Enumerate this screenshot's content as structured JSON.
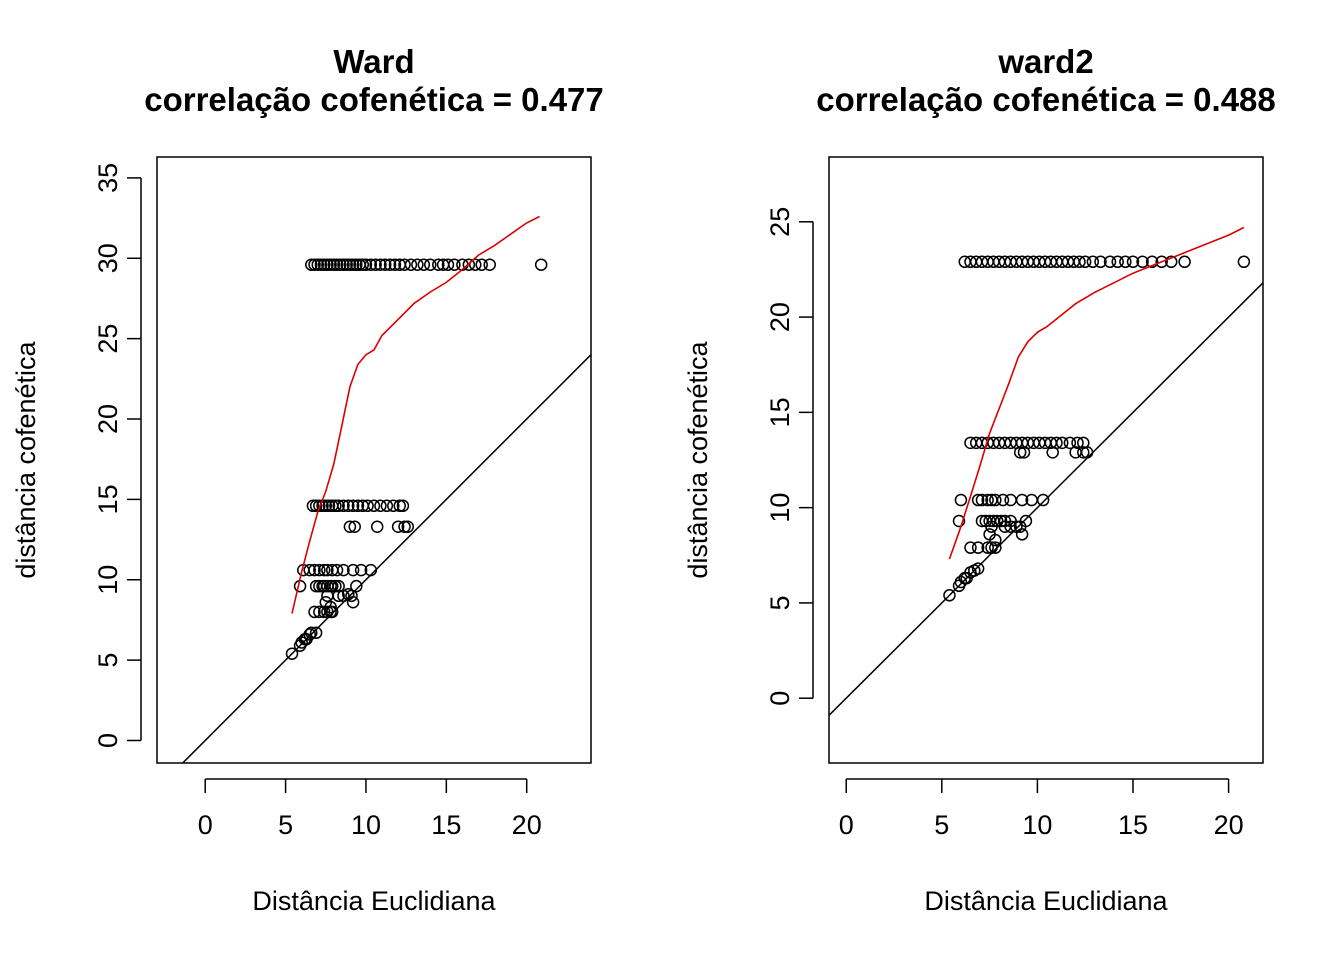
{
  "chart_data": [
    {
      "type": "scatter",
      "title": "Ward",
      "subtitle": "correlação cofenética = 0.477",
      "xlabel": "Distância Euclidiana",
      "ylabel": "distância cofenética",
      "xlim": [
        -3,
        24
      ],
      "ylim": [
        -1.4,
        36.3
      ],
      "xticks": [
        0,
        5,
        10,
        15,
        20
      ],
      "yticks": [
        0,
        5,
        10,
        15,
        20,
        25,
        30,
        35
      ],
      "reference_line": {
        "intercept": 0,
        "slope": 1,
        "color": "#000000"
      },
      "smooth_line": {
        "color": "#dd0000",
        "x": [
          5.4,
          6.0,
          6.5,
          7.0,
          7.5,
          8.0,
          8.5,
          9.0,
          9.5,
          10.0,
          10.5,
          11.0,
          12.0,
          13.0,
          14.0,
          15.0,
          16.0,
          17.0,
          18.0,
          19.0,
          20.0,
          20.8
        ],
        "y": [
          7.9,
          10.5,
          12.4,
          14.2,
          15.5,
          17.2,
          19.6,
          22.0,
          23.4,
          24.0,
          24.3,
          25.2,
          26.2,
          27.2,
          27.9,
          28.5,
          29.3,
          30.2,
          30.8,
          31.5,
          32.2,
          32.6
        ]
      },
      "points": {
        "color": "#000000",
        "x": [
          6.6,
          6.8,
          7.0,
          7.2,
          7.4,
          7.6,
          7.8,
          8.0,
          8.2,
          8.4,
          8.6,
          8.8,
          9.0,
          9.2,
          9.4,
          9.6,
          9.8,
          10.0,
          10.3,
          10.6,
          10.9,
          11.2,
          11.5,
          11.8,
          12.1,
          12.4,
          12.8,
          13.2,
          13.6,
          14.0,
          14.5,
          14.8,
          15.1,
          15.5,
          16.0,
          16.4,
          16.8,
          17.2,
          17.7,
          20.9,
          6.7,
          6.9,
          7.1,
          7.3,
          7.5,
          7.7,
          7.9,
          8.1,
          8.3,
          8.6,
          8.9,
          9.2,
          9.5,
          9.8,
          10.1,
          10.5,
          10.9,
          11.3,
          11.7,
          12.1,
          12.3,
          9.0,
          9.3,
          10.7,
          12.0,
          12.4,
          12.6,
          6.1,
          6.5,
          6.8,
          7.1,
          7.4,
          7.6,
          7.9,
          8.2,
          8.6,
          9.2,
          9.7,
          10.3,
          5.9,
          6.9,
          7.1,
          7.3,
          7.4,
          7.6,
          7.8,
          7.9,
          8.1,
          8.3,
          9.4,
          7.6,
          8.3,
          8.6,
          9.1,
          9.2,
          8.9,
          6.8,
          7.1,
          7.4,
          7.6,
          7.8,
          7.9,
          7.5,
          7.8,
          5.4,
          5.9,
          6.0,
          6.2,
          6.3,
          6.5,
          6.6,
          6.9
        ],
        "y": [
          29.6,
          29.6,
          29.6,
          29.6,
          29.6,
          29.6,
          29.6,
          29.6,
          29.6,
          29.6,
          29.6,
          29.6,
          29.6,
          29.6,
          29.6,
          29.6,
          29.6,
          29.6,
          29.6,
          29.6,
          29.6,
          29.6,
          29.6,
          29.6,
          29.6,
          29.6,
          29.6,
          29.6,
          29.6,
          29.6,
          29.6,
          29.6,
          29.6,
          29.6,
          29.6,
          29.6,
          29.6,
          29.6,
          29.6,
          29.6,
          14.6,
          14.6,
          14.6,
          14.6,
          14.6,
          14.6,
          14.6,
          14.6,
          14.6,
          14.6,
          14.6,
          14.6,
          14.6,
          14.6,
          14.6,
          14.6,
          14.6,
          14.6,
          14.6,
          14.6,
          14.6,
          13.3,
          13.3,
          13.3,
          13.3,
          13.3,
          13.3,
          10.6,
          10.6,
          10.6,
          10.6,
          10.6,
          10.6,
          10.6,
          10.6,
          10.6,
          10.6,
          10.6,
          10.6,
          9.6,
          9.6,
          9.6,
          9.6,
          9.6,
          9.6,
          9.6,
          9.6,
          9.6,
          9.6,
          9.6,
          9.0,
          9.0,
          9.0,
          9.0,
          8.6,
          9.1,
          8.0,
          8.0,
          8.0,
          8.0,
          8.0,
          8.0,
          8.6,
          8.3,
          5.4,
          5.9,
          6.1,
          6.3,
          6.3,
          6.6,
          6.7,
          6.7
        ]
      }
    },
    {
      "type": "scatter",
      "title": "ward2",
      "subtitle": "correlação cofenética = 0.488",
      "xlabel": "Distância Euclidiana",
      "ylabel": "distância cofenética",
      "xlim": [
        -0.9,
        21.8
      ],
      "ylim": [
        -3.4,
        28.4
      ],
      "xticks": [
        0,
        5,
        10,
        15,
        20
      ],
      "yticks": [
        0,
        5,
        10,
        15,
        20,
        25
      ],
      "reference_line": {
        "intercept": 0,
        "slope": 1,
        "color": "#000000"
      },
      "smooth_line": {
        "color": "#dd0000",
        "x": [
          5.4,
          6.0,
          6.5,
          7.0,
          7.5,
          8.0,
          8.5,
          9.0,
          9.5,
          10.0,
          10.5,
          11.0,
          12.0,
          13.0,
          14.0,
          15.0,
          16.0,
          17.0,
          18.0,
          19.0,
          20.0,
          20.8
        ],
        "y": [
          7.3,
          9.0,
          10.6,
          12.2,
          13.9,
          15.2,
          16.5,
          17.9,
          18.7,
          19.2,
          19.5,
          19.9,
          20.7,
          21.3,
          21.8,
          22.3,
          22.7,
          23.1,
          23.5,
          23.9,
          24.3,
          24.7
        ]
      },
      "points": {
        "color": "#000000",
        "x": [
          6.2,
          6.5,
          6.8,
          7.1,
          7.4,
          7.7,
          8.0,
          8.3,
          8.6,
          8.9,
          9.2,
          9.5,
          9.8,
          10.1,
          10.4,
          10.7,
          11.0,
          11.3,
          11.6,
          11.9,
          12.2,
          12.5,
          12.9,
          13.3,
          13.8,
          14.2,
          14.6,
          15.0,
          15.5,
          16.0,
          16.5,
          17.0,
          17.7,
          20.8,
          6.5,
          6.8,
          7.1,
          7.4,
          7.7,
          8.0,
          8.3,
          8.6,
          8.9,
          9.2,
          9.5,
          9.8,
          10.1,
          10.4,
          10.7,
          11.0,
          11.3,
          11.7,
          12.1,
          12.4,
          9.1,
          9.3,
          10.8,
          12.0,
          12.4,
          12.6,
          6.0,
          6.9,
          7.1,
          7.4,
          7.6,
          7.8,
          8.2,
          8.6,
          9.2,
          9.7,
          10.3,
          5.9,
          7.1,
          7.3,
          7.5,
          7.7,
          7.9,
          8.1,
          8.3,
          8.6,
          9.4,
          7.6,
          8.3,
          8.6,
          8.9,
          9.1,
          9.2,
          6.5,
          6.9,
          7.4,
          7.6,
          7.8,
          7.5,
          7.8,
          5.4,
          5.9,
          6.0,
          6.2,
          6.3,
          6.5,
          6.7,
          6.9
        ],
        "y": [
          22.9,
          22.9,
          22.9,
          22.9,
          22.9,
          22.9,
          22.9,
          22.9,
          22.9,
          22.9,
          22.9,
          22.9,
          22.9,
          22.9,
          22.9,
          22.9,
          22.9,
          22.9,
          22.9,
          22.9,
          22.9,
          22.9,
          22.9,
          22.9,
          22.9,
          22.9,
          22.9,
          22.9,
          22.9,
          22.9,
          22.9,
          22.9,
          22.9,
          22.9,
          13.4,
          13.4,
          13.4,
          13.4,
          13.4,
          13.4,
          13.4,
          13.4,
          13.4,
          13.4,
          13.4,
          13.4,
          13.4,
          13.4,
          13.4,
          13.4,
          13.4,
          13.4,
          13.4,
          13.4,
          12.9,
          12.9,
          12.9,
          12.9,
          12.9,
          12.9,
          10.4,
          10.4,
          10.4,
          10.4,
          10.4,
          10.4,
          10.4,
          10.4,
          10.4,
          10.4,
          10.4,
          9.3,
          9.3,
          9.3,
          9.3,
          9.3,
          9.3,
          9.3,
          9.3,
          9.3,
          9.3,
          9.0,
          9.0,
          9.0,
          9.0,
          9.0,
          8.6,
          7.9,
          7.9,
          7.9,
          7.9,
          7.9,
          8.6,
          8.3,
          5.4,
          5.9,
          6.1,
          6.3,
          6.3,
          6.6,
          6.7,
          6.8
        ]
      }
    }
  ]
}
